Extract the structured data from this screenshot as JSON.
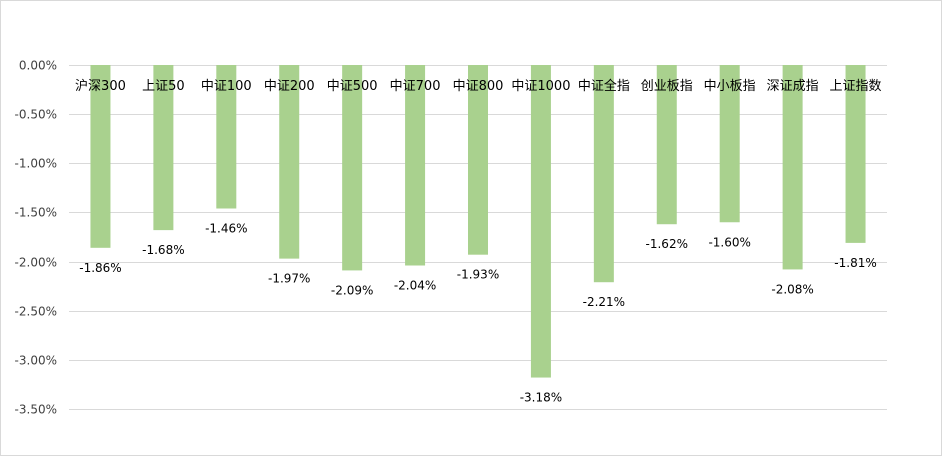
{
  "chart_data": {
    "type": "bar",
    "categories": [
      "沪深300",
      "上证50",
      "中证100",
      "中证200",
      "中证500",
      "中证700",
      "中证800",
      "中证1000",
      "中证全指",
      "创业板指",
      "中小板指",
      "深证成指",
      "上证指数"
    ],
    "values": [
      -1.86,
      -1.68,
      -1.46,
      -1.97,
      -2.09,
      -2.04,
      -1.93,
      -3.18,
      -2.21,
      -1.62,
      -1.6,
      -2.08,
      -1.81
    ],
    "data_labels": [
      "-1.86%",
      "-1.68%",
      "-1.46%",
      "-1.97%",
      "-2.09%",
      "-2.04%",
      "-1.93%",
      "-3.18%",
      "-2.21%",
      "-1.62%",
      "-1.60%",
      "-2.08%",
      "-1.81%"
    ],
    "yticks": [
      0,
      -0.5,
      -1.0,
      -1.5,
      -2.0,
      -2.5,
      -3.0,
      -3.5
    ],
    "ytick_labels": [
      "0.00%",
      "-0.50%",
      "-1.00%",
      "-1.50%",
      "-2.00%",
      "-2.50%",
      "-3.00%",
      "-3.50%"
    ],
    "ylim": [
      -3.5,
      0
    ],
    "unit": "%",
    "bar_color": "#a9d18e",
    "gridline_color": "#d9d9d9",
    "grid": true,
    "legend": "none",
    "title": "",
    "xlabel": "",
    "ylabel": ""
  }
}
